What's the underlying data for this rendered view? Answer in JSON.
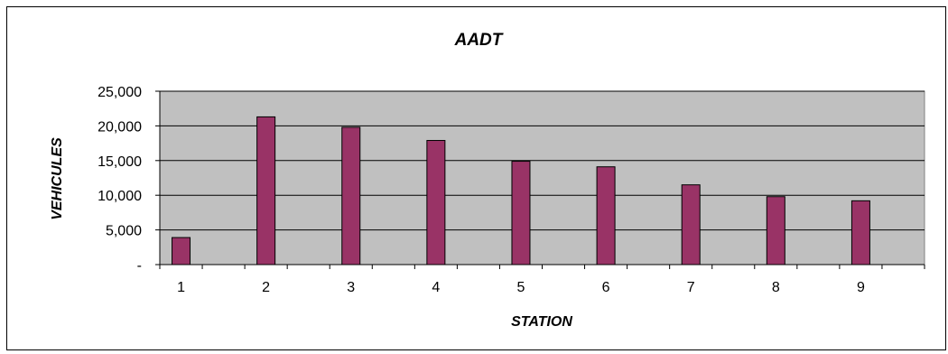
{
  "chart_data": {
    "type": "bar",
    "title": "AADT",
    "xlabel": "STATION",
    "ylabel": "VEHICULES",
    "categories": [
      "1",
      "2",
      "3",
      "4",
      "5",
      "6",
      "7",
      "8",
      "9"
    ],
    "values": [
      3900,
      21300,
      19800,
      17900,
      14900,
      14100,
      11500,
      9800,
      9200
    ],
    "ylim": [
      0,
      25000
    ],
    "yticks": [
      0,
      5000,
      10000,
      15000,
      20000,
      25000
    ],
    "ytick_labels": [
      "-",
      "5,000",
      "10,000",
      "15,000",
      "20,000",
      "25,000"
    ],
    "grid": true,
    "legend": "none",
    "colors": {
      "bar_fill": "#993366",
      "bar_stroke": "#000000",
      "plot_background": "#c0c0c0",
      "gridline": "#000000"
    }
  }
}
